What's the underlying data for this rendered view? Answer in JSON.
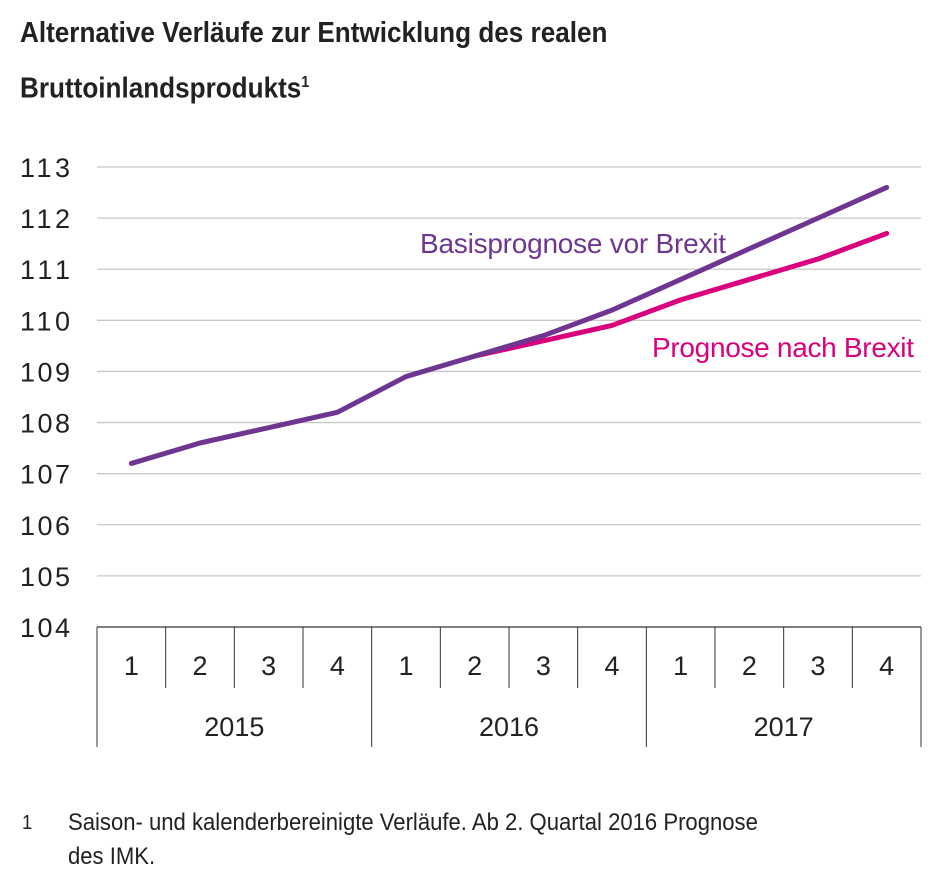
{
  "title_line1": "Alternative Verläufe  zur Entwicklung des realen",
  "title_line2": "Bruttoinlandsprodukts",
  "title_footnote_mark": "1",
  "footnote": {
    "number": "1",
    "text_line1": "Saison- und kalenderbereinigte Verläufe. Ab 2. Quartal 2016 Prognose",
    "text_line2": "des IMK."
  },
  "chart_data": {
    "type": "line",
    "ylim": [
      104,
      113
    ],
    "yticks": [
      "104",
      "105",
      "106",
      "107",
      "108",
      "109",
      "110",
      "111",
      "112",
      "113"
    ],
    "grid": true,
    "categories": [
      "1",
      "2",
      "3",
      "4",
      "1",
      "2",
      "3",
      "4",
      "1",
      "2",
      "3",
      "4"
    ],
    "groups": [
      {
        "label": "2015",
        "span": 4
      },
      {
        "label": "2016",
        "span": 4
      },
      {
        "label": "2017",
        "span": 4
      }
    ],
    "series": [
      {
        "name": "Basisprognose vor Brexit",
        "color": "#6e3591",
        "values": [
          107.2,
          107.6,
          107.9,
          108.2,
          108.9,
          109.3,
          109.7,
          110.2,
          110.8,
          111.4,
          112.0,
          112.6
        ]
      },
      {
        "name": "Prognose nach Brexit",
        "color": "#d9007e",
        "values": [
          null,
          null,
          null,
          null,
          null,
          109.3,
          109.6,
          109.9,
          110.4,
          110.8,
          111.2,
          111.7
        ]
      }
    ]
  }
}
